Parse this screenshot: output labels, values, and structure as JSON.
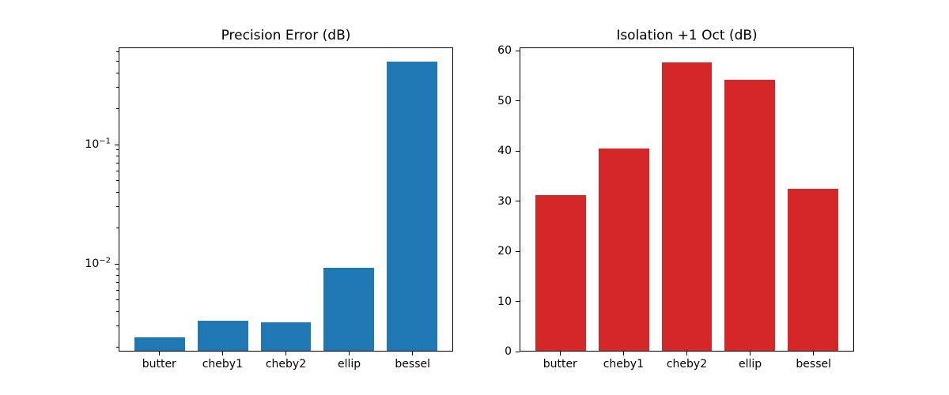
{
  "figure": {
    "background": "#ffffff",
    "frame_color": "#000000",
    "text_color": "#000000"
  },
  "chart_data": [
    {
      "type": "bar",
      "title": "Precision Error (dB)",
      "categories": [
        "butter",
        "cheby1",
        "cheby2",
        "ellip",
        "bessel"
      ],
      "values": [
        0.0024,
        0.0033,
        0.0032,
        0.0092,
        0.5
      ],
      "bar_color": "#1f77b4",
      "bar_width": 0.8,
      "yscale": "log",
      "ylim": [
        0.00184,
        0.653
      ],
      "xlim": [
        -0.64,
        4.64
      ],
      "grid": false,
      "legend": null,
      "xlabel": "",
      "ylabel": "",
      "yticks": [
        {
          "value": 0.01,
          "base": "10",
          "exp": "−2"
        },
        {
          "value": 0.1,
          "base": "10",
          "exp": "−1"
        }
      ],
      "minor_ticks": true
    },
    {
      "type": "bar",
      "title": "Isolation +1 Oct (dB)",
      "categories": [
        "butter",
        "cheby1",
        "cheby2",
        "ellip",
        "bessel"
      ],
      "values": [
        31.2,
        40.5,
        57.8,
        54.3,
        32.5
      ],
      "bar_color": "#d62728",
      "bar_width": 0.8,
      "yscale": "linear",
      "ylim": [
        0,
        60.7
      ],
      "xlim": [
        -0.64,
        4.64
      ],
      "grid": false,
      "legend": null,
      "xlabel": "",
      "ylabel": "",
      "yticks": [
        0,
        10,
        20,
        30,
        40,
        50,
        60
      ],
      "minor_ticks": false
    }
  ]
}
